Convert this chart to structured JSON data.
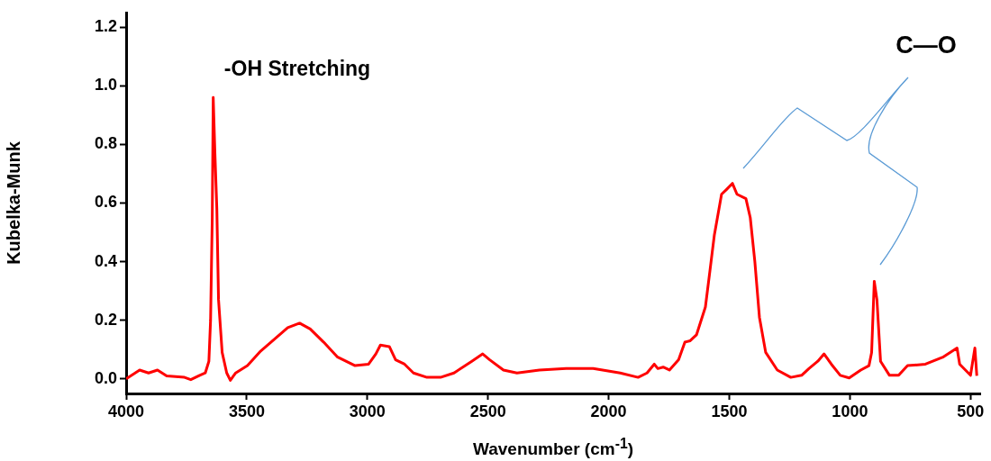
{
  "chart_data": {
    "type": "line",
    "xlabel": "Wavenumber (cm$^{-1}$)",
    "ylabel": "Kubelka-Munk",
    "annotations": [
      "-OH Stretching",
      "C—O"
    ],
    "xlim": [
      4000,
      460
    ],
    "xticks": [
      4000,
      3500,
      3000,
      2500,
      2000,
      1500,
      1000,
      500
    ],
    "ylim": [
      -0.05,
      1.25
    ],
    "yticks": [
      {
        "value": 0,
        "label": "0.0"
      },
      0.2,
      0.4,
      0.6,
      0.8,
      {
        "value": 1,
        "label": "1.0"
      },
      1.2
    ],
    "grid": false,
    "legend": false,
    "marker": "none",
    "line_style": "solid",
    "series": [
      {
        "color": "#ff0000",
        "x": [
          4000,
          3944,
          3907,
          3870,
          3832,
          3758,
          3732,
          3695,
          3672,
          3657,
          3650,
          3643,
          3639,
          3632,
          3624,
          3617,
          3602,
          3583,
          3568,
          3546,
          3497,
          3442,
          3386,
          3330,
          3281,
          3237,
          3181,
          3125,
          3051,
          2995,
          2965,
          2946,
          2909,
          2883,
          2846,
          2809,
          2753,
          2697,
          2641,
          2567,
          2522,
          2493,
          2436,
          2380,
          2287,
          2176,
          2064,
          1952,
          1878,
          1841,
          1811,
          1796,
          1774,
          1748,
          1710,
          1684,
          1662,
          1636,
          1599,
          1580,
          1562,
          1532,
          1513,
          1487,
          1468,
          1431,
          1413,
          1394,
          1375,
          1349,
          1301,
          1245,
          1200,
          1170,
          1133,
          1107,
          1077,
          1040,
          1003,
          955,
          921,
          910,
          899,
          888,
          873,
          836,
          798,
          761,
          687,
          612,
          556,
          545,
          500,
          482,
          474
        ],
        "values": [
          0.0,
          0.03,
          0.02,
          0.03,
          0.01,
          0.005,
          -0.003,
          0.012,
          0.02,
          0.06,
          0.2,
          0.55,
          0.96,
          0.77,
          0.58,
          0.27,
          0.09,
          0.02,
          -0.005,
          0.02,
          0.045,
          0.095,
          0.135,
          0.175,
          0.19,
          0.17,
          0.125,
          0.075,
          0.045,
          0.05,
          0.085,
          0.115,
          0.11,
          0.065,
          0.05,
          0.02,
          0.005,
          0.005,
          0.02,
          0.06,
          0.085,
          0.065,
          0.03,
          0.02,
          0.03,
          0.035,
          0.035,
          0.02,
          0.005,
          0.02,
          0.05,
          0.035,
          0.04,
          0.03,
          0.065,
          0.125,
          0.13,
          0.15,
          0.245,
          0.37,
          0.49,
          0.63,
          0.645,
          0.667,
          0.63,
          0.615,
          0.55,
          0.4,
          0.21,
          0.09,
          0.03,
          0.005,
          0.012,
          0.035,
          0.06,
          0.085,
          0.05,
          0.012,
          0.003,
          0.03,
          0.045,
          0.09,
          0.333,
          0.27,
          0.06,
          0.012,
          0.012,
          0.045,
          0.05,
          0.075,
          0.105,
          0.05,
          0.012,
          0.105,
          0.01
        ]
      }
    ]
  }
}
